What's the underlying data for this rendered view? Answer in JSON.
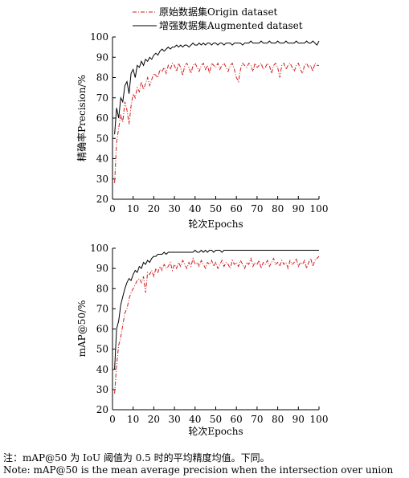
{
  "legend": {
    "origin_label": "原始数据集Origin dataset",
    "augmented_label": "增强数据集Augmented dataset"
  },
  "colors": {
    "origin": "#d11a1a",
    "augmented": "#000000"
  },
  "note": {
    "cn": "注：mAP@50 为 IoU 阈值为 0.5 时的平均精度均值。下同。",
    "en": "Note: mAP@50 is the mean average precision when the intersection over union"
  },
  "chart_data": [
    {
      "type": "line",
      "title": "",
      "xlabel": "轮次Epochs",
      "ylabel": "精确率Precision/%",
      "xlim": [
        0,
        100
      ],
      "ylim": [
        20,
        100
      ],
      "xticks": [
        0,
        10,
        20,
        30,
        40,
        50,
        60,
        70,
        80,
        90,
        100
      ],
      "yticks": [
        20,
        30,
        40,
        50,
        60,
        70,
        80,
        90,
        100
      ],
      "grid": false,
      "series": [
        {
          "name": "原始数据集Origin dataset",
          "style": "dashdot",
          "x": [
            1,
            2,
            3,
            4,
            5,
            6,
            7,
            8,
            9,
            10,
            11,
            12,
            13,
            14,
            15,
            16,
            17,
            18,
            19,
            20,
            21,
            22,
            23,
            24,
            25,
            26,
            27,
            28,
            29,
            30,
            31,
            32,
            33,
            34,
            35,
            36,
            37,
            38,
            39,
            40,
            41,
            42,
            43,
            44,
            45,
            46,
            47,
            48,
            49,
            50,
            51,
            52,
            53,
            54,
            55,
            56,
            57,
            58,
            59,
            60,
            61,
            62,
            63,
            64,
            65,
            66,
            67,
            68,
            69,
            70,
            71,
            72,
            73,
            74,
            75,
            76,
            77,
            78,
            79,
            80,
            81,
            82,
            83,
            84,
            85,
            86,
            87,
            88,
            89,
            90,
            91,
            92,
            93,
            94,
            95,
            96,
            97,
            98,
            99,
            100
          ],
          "y": [
            28,
            48,
            55,
            62,
            58,
            68,
            64,
            57,
            66,
            72,
            70,
            75,
            73,
            78,
            74,
            77,
            80,
            76,
            79,
            82,
            81,
            80,
            84,
            83,
            85,
            82,
            86,
            84,
            87,
            86,
            83,
            87,
            85,
            81,
            86,
            87,
            85,
            82,
            86,
            87,
            85,
            83,
            86,
            87,
            84,
            86,
            82,
            87,
            86,
            85,
            87,
            84,
            86,
            87,
            85,
            83,
            86,
            87,
            84,
            80,
            78,
            84,
            87,
            86,
            85,
            87,
            86,
            83,
            87,
            85,
            86,
            87,
            84,
            85,
            87,
            86,
            82,
            86,
            87,
            85,
            80,
            86,
            87,
            84,
            86,
            87,
            85,
            83,
            86,
            87,
            84,
            82,
            86,
            87,
            85,
            86,
            83,
            87,
            86,
            86
          ]
        },
        {
          "name": "增强数据集Augmented dataset",
          "style": "solid",
          "x": [
            1,
            2,
            3,
            4,
            5,
            6,
            7,
            8,
            9,
            10,
            11,
            12,
            13,
            14,
            15,
            16,
            17,
            18,
            19,
            20,
            21,
            22,
            23,
            24,
            25,
            26,
            27,
            28,
            29,
            30,
            31,
            32,
            33,
            34,
            35,
            36,
            37,
            38,
            39,
            40,
            41,
            42,
            43,
            44,
            45,
            46,
            47,
            48,
            49,
            50,
            51,
            52,
            53,
            54,
            55,
            56,
            57,
            58,
            59,
            60,
            61,
            62,
            63,
            64,
            65,
            66,
            67,
            68,
            69,
            70,
            71,
            72,
            73,
            74,
            75,
            76,
            77,
            78,
            79,
            80,
            81,
            82,
            83,
            84,
            85,
            86,
            87,
            88,
            89,
            90,
            91,
            92,
            93,
            94,
            95,
            96,
            97,
            98,
            99,
            100
          ],
          "y": [
            52,
            65,
            60,
            70,
            68,
            76,
            78,
            72,
            82,
            84,
            80,
            86,
            85,
            88,
            86,
            89,
            88,
            90,
            89,
            91,
            92,
            91,
            93,
            94,
            93,
            94,
            95,
            94,
            95,
            95,
            96,
            95,
            96,
            95,
            96,
            96,
            95,
            96,
            97,
            96,
            96,
            97,
            96,
            97,
            96,
            97,
            97,
            96,
            97,
            97,
            96,
            97,
            97,
            96,
            97,
            97,
            97,
            96,
            97,
            97,
            97,
            97,
            96,
            97,
            97,
            97,
            98,
            97,
            97,
            97,
            97,
            98,
            97,
            97,
            97,
            98,
            97,
            97,
            97,
            98,
            97,
            97,
            97,
            98,
            97,
            97,
            97,
            97,
            98,
            97,
            97,
            97,
            97,
            98,
            97,
            97,
            98,
            97,
            96,
            98
          ]
        }
      ]
    },
    {
      "type": "line",
      "title": "",
      "xlabel": "轮次Epochs",
      "ylabel": "mAP@50/%",
      "xlim": [
        0,
        100
      ],
      "ylim": [
        20,
        100
      ],
      "xticks": [
        0,
        10,
        20,
        30,
        40,
        50,
        60,
        70,
        80,
        90,
        100
      ],
      "yticks": [
        20,
        30,
        40,
        50,
        60,
        70,
        80,
        90,
        100
      ],
      "grid": false,
      "series": [
        {
          "name": "原始数据集Origin dataset",
          "style": "dashdot",
          "x": [
            1,
            2,
            3,
            4,
            5,
            6,
            7,
            8,
            9,
            10,
            11,
            12,
            13,
            14,
            15,
            16,
            17,
            18,
            19,
            20,
            21,
            22,
            23,
            24,
            25,
            26,
            27,
            28,
            29,
            30,
            31,
            32,
            33,
            34,
            35,
            36,
            37,
            38,
            39,
            40,
            41,
            42,
            43,
            44,
            45,
            46,
            47,
            48,
            49,
            50,
            51,
            52,
            53,
            54,
            55,
            56,
            57,
            58,
            59,
            60,
            61,
            62,
            63,
            64,
            65,
            66,
            67,
            68,
            69,
            70,
            71,
            72,
            73,
            74,
            75,
            76,
            77,
            78,
            79,
            80,
            81,
            82,
            83,
            84,
            85,
            86,
            87,
            88,
            89,
            90,
            91,
            92,
            93,
            94,
            95,
            96,
            97,
            98,
            99,
            100
          ],
          "y": [
            28,
            42,
            52,
            56,
            62,
            68,
            70,
            75,
            78,
            80,
            82,
            84,
            85,
            83,
            86,
            78,
            88,
            87,
            89,
            86,
            90,
            88,
            91,
            89,
            92,
            90,
            91,
            93,
            89,
            92,
            90,
            93,
            91,
            94,
            92,
            90,
            93,
            91,
            95,
            92,
            93,
            91,
            94,
            92,
            90,
            93,
            92,
            94,
            91,
            93,
            90,
            92,
            94,
            91,
            93,
            92,
            90,
            94,
            92,
            93,
            91,
            94,
            92,
            90,
            93,
            92,
            95,
            91,
            93,
            92,
            94,
            90,
            93,
            92,
            94,
            91,
            93,
            95,
            92,
            93,
            91,
            94,
            92,
            93,
            90,
            94,
            92,
            93,
            95,
            91,
            93,
            92,
            94,
            90,
            93,
            95,
            91,
            94,
            95,
            96
          ]
        },
        {
          "name": "增强数据集Augmented dataset",
          "style": "solid",
          "x": [
            1,
            2,
            3,
            4,
            5,
            6,
            7,
            8,
            9,
            10,
            11,
            12,
            13,
            14,
            15,
            16,
            17,
            18,
            19,
            20,
            21,
            22,
            23,
            24,
            25,
            26,
            27,
            28,
            29,
            30,
            31,
            32,
            33,
            34,
            35,
            36,
            37,
            38,
            39,
            40,
            41,
            42,
            43,
            44,
            45,
            46,
            47,
            48,
            49,
            50,
            51,
            52,
            53,
            54,
            55,
            56,
            57,
            58,
            59,
            60,
            61,
            62,
            63,
            64,
            65,
            66,
            67,
            68,
            69,
            70,
            71,
            72,
            73,
            74,
            75,
            76,
            77,
            78,
            79,
            80,
            81,
            82,
            83,
            84,
            85,
            86,
            87,
            88,
            89,
            90,
            91,
            92,
            93,
            94,
            95,
            96,
            97,
            98,
            99,
            100
          ],
          "y": [
            40,
            60,
            64,
            72,
            76,
            80,
            83,
            85,
            84,
            87,
            89,
            88,
            91,
            90,
            93,
            92,
            94,
            93,
            95,
            96,
            96,
            97,
            97,
            97,
            98,
            97,
            98,
            98,
            98,
            98,
            98,
            98,
            98,
            98,
            98,
            98,
            98,
            98,
            98,
            99,
            98,
            98,
            99,
            98,
            99,
            98,
            99,
            99,
            98,
            99,
            99,
            99,
            98,
            99,
            99,
            99,
            99,
            99,
            99,
            99,
            99,
            99,
            99,
            99,
            99,
            99,
            99,
            99,
            99,
            99,
            99,
            99,
            99,
            99,
            99,
            99,
            99,
            99,
            99,
            99,
            99,
            99,
            99,
            99,
            99,
            99,
            99,
            99,
            99,
            99,
            99,
            99,
            99,
            99,
            99,
            99,
            99,
            99,
            99,
            99
          ]
        }
      ]
    }
  ]
}
